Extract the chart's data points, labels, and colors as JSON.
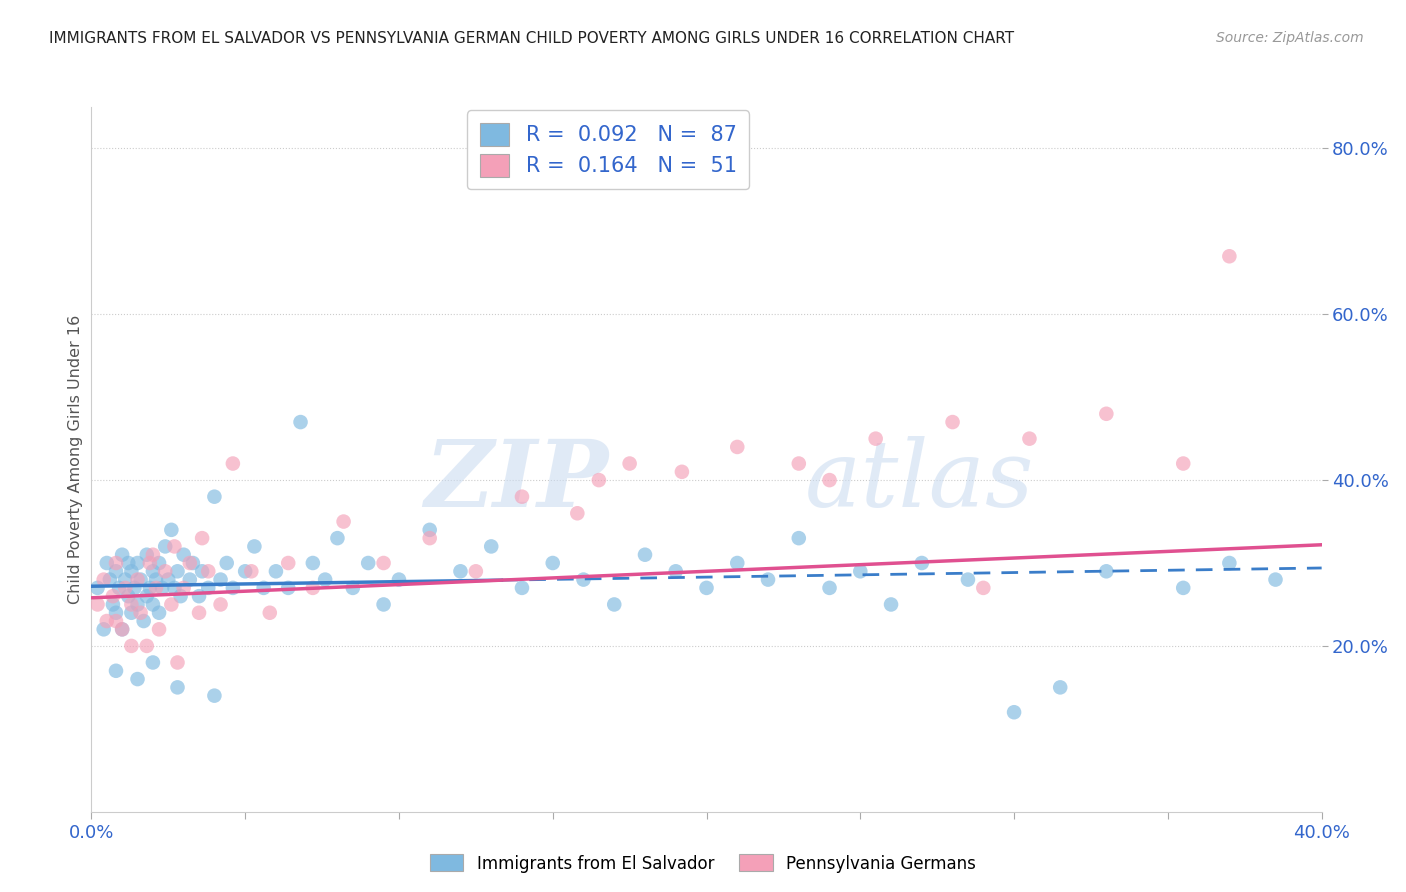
{
  "title": "IMMIGRANTS FROM EL SALVADOR VS PENNSYLVANIA GERMAN CHILD POVERTY AMONG GIRLS UNDER 16 CORRELATION CHART",
  "source": "Source: ZipAtlas.com",
  "ylabel": "Child Poverty Among Girls Under 16",
  "xlim": [
    0.0,
    0.4
  ],
  "ylim": [
    0.0,
    0.85
  ],
  "xticks": [
    0.0,
    0.05,
    0.1,
    0.15,
    0.2,
    0.25,
    0.3,
    0.35,
    0.4
  ],
  "xtick_labels": [
    "0.0%",
    "",
    "",
    "",
    "",
    "",
    "",
    "",
    "40.0%"
  ],
  "ytick_vals_right": [
    0.2,
    0.4,
    0.6,
    0.8
  ],
  "legend_blue_label": "Immigrants from El Salvador",
  "legend_pink_label": "Pennsylvania Germans",
  "R_blue": 0.092,
  "N_blue": 87,
  "R_pink": 0.164,
  "N_pink": 51,
  "blue_color": "#7fb9e0",
  "pink_color": "#f4a0b8",
  "blue_line_color": "#3a7dc9",
  "pink_line_color": "#e05090",
  "background_color": "#ffffff",
  "plot_bg_color": "#ffffff",
  "grid_color": "#cccccc",
  "blue_line_y0": 0.272,
  "blue_line_y1": 0.294,
  "pink_line_y0": 0.258,
  "pink_line_y1": 0.322,
  "blue_scatter_x": [
    0.002,
    0.004,
    0.005,
    0.006,
    0.007,
    0.008,
    0.008,
    0.009,
    0.01,
    0.01,
    0.011,
    0.012,
    0.012,
    0.013,
    0.013,
    0.014,
    0.015,
    0.015,
    0.016,
    0.017,
    0.018,
    0.018,
    0.019,
    0.02,
    0.02,
    0.021,
    0.022,
    0.022,
    0.023,
    0.024,
    0.025,
    0.026,
    0.027,
    0.028,
    0.029,
    0.03,
    0.032,
    0.033,
    0.035,
    0.036,
    0.038,
    0.04,
    0.042,
    0.044,
    0.046,
    0.05,
    0.053,
    0.056,
    0.06,
    0.064,
    0.068,
    0.072,
    0.076,
    0.08,
    0.085,
    0.09,
    0.095,
    0.1,
    0.11,
    0.12,
    0.13,
    0.14,
    0.15,
    0.16,
    0.17,
    0.18,
    0.19,
    0.2,
    0.21,
    0.22,
    0.23,
    0.24,
    0.25,
    0.26,
    0.27,
    0.285,
    0.3,
    0.315,
    0.33,
    0.355,
    0.37,
    0.385,
    0.008,
    0.015,
    0.02,
    0.028,
    0.04
  ],
  "blue_scatter_y": [
    0.27,
    0.22,
    0.3,
    0.28,
    0.25,
    0.29,
    0.24,
    0.27,
    0.22,
    0.31,
    0.28,
    0.26,
    0.3,
    0.24,
    0.29,
    0.27,
    0.25,
    0.3,
    0.28,
    0.23,
    0.26,
    0.31,
    0.27,
    0.25,
    0.29,
    0.28,
    0.3,
    0.24,
    0.27,
    0.32,
    0.28,
    0.34,
    0.27,
    0.29,
    0.26,
    0.31,
    0.28,
    0.3,
    0.26,
    0.29,
    0.27,
    0.38,
    0.28,
    0.3,
    0.27,
    0.29,
    0.32,
    0.27,
    0.29,
    0.27,
    0.47,
    0.3,
    0.28,
    0.33,
    0.27,
    0.3,
    0.25,
    0.28,
    0.34,
    0.29,
    0.32,
    0.27,
    0.3,
    0.28,
    0.25,
    0.31,
    0.29,
    0.27,
    0.3,
    0.28,
    0.33,
    0.27,
    0.29,
    0.25,
    0.3,
    0.28,
    0.12,
    0.15,
    0.29,
    0.27,
    0.3,
    0.28,
    0.17,
    0.16,
    0.18,
    0.15,
    0.14
  ],
  "pink_scatter_x": [
    0.002,
    0.004,
    0.005,
    0.007,
    0.008,
    0.01,
    0.011,
    0.013,
    0.015,
    0.016,
    0.018,
    0.019,
    0.021,
    0.022,
    0.024,
    0.026,
    0.028,
    0.03,
    0.032,
    0.035,
    0.038,
    0.042,
    0.046,
    0.052,
    0.058,
    0.064,
    0.072,
    0.082,
    0.095,
    0.11,
    0.125,
    0.14,
    0.158,
    0.175,
    0.192,
    0.21,
    0.23,
    0.255,
    0.28,
    0.305,
    0.33,
    0.355,
    0.008,
    0.013,
    0.02,
    0.027,
    0.036,
    0.165,
    0.24,
    0.29,
    0.37
  ],
  "pink_scatter_y": [
    0.25,
    0.28,
    0.23,
    0.26,
    0.3,
    0.22,
    0.27,
    0.25,
    0.28,
    0.24,
    0.2,
    0.3,
    0.27,
    0.22,
    0.29,
    0.25,
    0.18,
    0.27,
    0.3,
    0.24,
    0.29,
    0.25,
    0.42,
    0.29,
    0.24,
    0.3,
    0.27,
    0.35,
    0.3,
    0.33,
    0.29,
    0.38,
    0.36,
    0.42,
    0.41,
    0.44,
    0.42,
    0.45,
    0.47,
    0.45,
    0.48,
    0.42,
    0.23,
    0.2,
    0.31,
    0.32,
    0.33,
    0.4,
    0.4,
    0.27,
    0.67
  ]
}
